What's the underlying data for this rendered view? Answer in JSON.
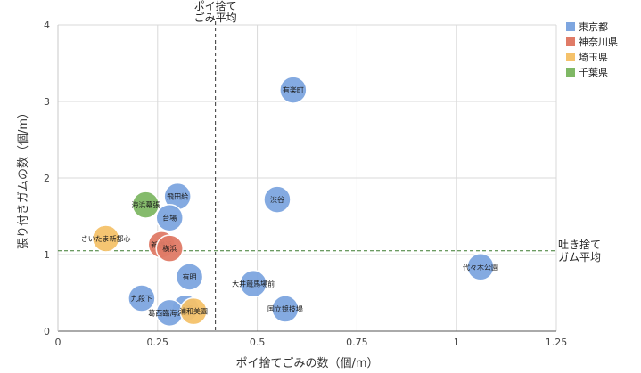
{
  "chart_data": {
    "type": "scatter",
    "xlabel": "ポイ捨てごみの数（個/m）",
    "ylabel": "張り付きガムの数（個/m）",
    "xlim": [
      0,
      1.25
    ],
    "ylim": [
      0,
      4
    ],
    "x_ticks": [
      "0",
      "0.25",
      "0.5",
      "0.75",
      "1",
      "1.25"
    ],
    "y_ticks": [
      "0",
      "1",
      "2",
      "3",
      "4"
    ],
    "grid": true,
    "legend_position": "right",
    "series": [
      {
        "name": "東京都",
        "color": "#7ea6e0",
        "points": [
          {
            "label": "有楽町",
            "x": 0.59,
            "y": 3.15
          },
          {
            "label": "渋谷",
            "x": 0.55,
            "y": 1.72
          },
          {
            "label": "飛田給",
            "x": 0.3,
            "y": 1.76
          },
          {
            "label": "台場",
            "x": 0.28,
            "y": 1.48
          },
          {
            "label": "有明",
            "x": 0.33,
            "y": 0.71
          },
          {
            "label": "九段下",
            "x": 0.21,
            "y": 0.43
          },
          {
            "label": "新宿",
            "x": 0.32,
            "y": 0.3
          },
          {
            "label": "葛西臨海公園",
            "x": 0.28,
            "y": 0.24
          },
          {
            "label": "大井競馬場前",
            "x": 0.49,
            "y": 0.62
          },
          {
            "label": "国立競技場",
            "x": 0.57,
            "y": 0.29
          },
          {
            "label": "代々木公園",
            "x": 1.06,
            "y": 0.84
          }
        ]
      },
      {
        "name": "神奈川県",
        "color": "#e07b67",
        "points": [
          {
            "label": "新横浜",
            "x": 0.26,
            "y": 1.13
          },
          {
            "label": "横浜",
            "x": 0.28,
            "y": 1.08
          }
        ]
      },
      {
        "name": "埼玉県",
        "color": "#f5c26b",
        "points": [
          {
            "label": "さいたま新都心",
            "x": 0.12,
            "y": 1.21
          },
          {
            "label": "浦和美園",
            "x": 0.34,
            "y": 0.26
          }
        ]
      },
      {
        "name": "千葉県",
        "color": "#7fb865",
        "points": [
          {
            "label": "海浜幕張",
            "x": 0.22,
            "y": 1.65
          }
        ]
      }
    ],
    "reference_lines": [
      {
        "axis": "x",
        "value": 0.395,
        "label_lines": [
          "ポイ捨て",
          "ごみ平均"
        ]
      },
      {
        "axis": "y",
        "value": 1.05,
        "label_lines": [
          "吐き捨て",
          "ガム平均"
        ]
      }
    ]
  }
}
